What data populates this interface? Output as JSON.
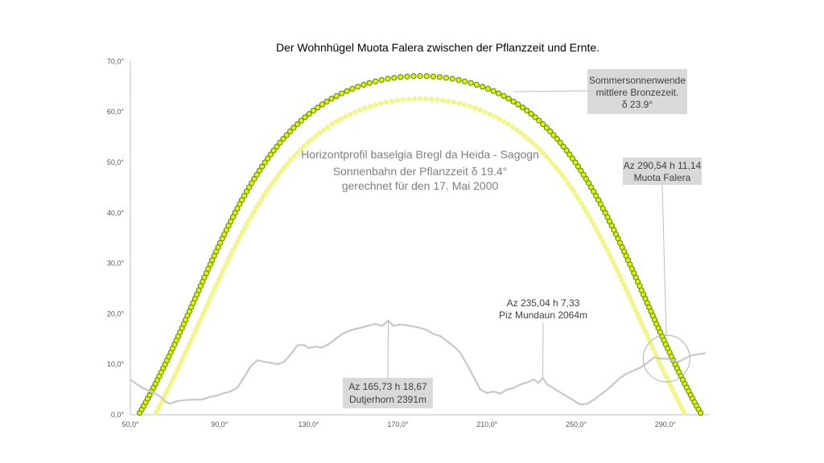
{
  "chart_data": {
    "type": "scatter",
    "title": "Der Wohnhügel Muota Falera zwischen der Pflanzzeit und Ernte.",
    "xlim": [
      50,
      310
    ],
    "ylim": [
      0,
      70
    ],
    "x_ticks": [
      50,
      90,
      130,
      170,
      210,
      250,
      290
    ],
    "x_tick_labels": [
      "50,0°",
      "90,0°",
      "130,0°",
      "170,0°",
      "210,0°",
      "250,0°",
      "290,0°"
    ],
    "y_ticks": [
      0,
      10,
      20,
      30,
      40,
      50,
      60,
      70
    ],
    "y_tick_labels": [
      "0,0°",
      "10,0°",
      "20,0°",
      "30,0°",
      "40,0°",
      "50,0°",
      "60,0°",
      "70,0°"
    ],
    "grid": false,
    "colors": {
      "summer_dots": "#e6f000",
      "summer_dots_outline": "#4d8a00",
      "planting_dots": "#f2f58a",
      "horizon_line": "#c8c8c8",
      "axis": "#bfbfbf",
      "box_fill": "#d9d9d9"
    },
    "horizon_profile": {
      "x": [
        50,
        53,
        56,
        59,
        62,
        64,
        66,
        68,
        70,
        74,
        78,
        82,
        86,
        89,
        92,
        95,
        98,
        101,
        104,
        107,
        110,
        113,
        116,
        119,
        122,
        125,
        128,
        130,
        133,
        136,
        139,
        142,
        145,
        148,
        151,
        154,
        157,
        160,
        163,
        165.73,
        168,
        171,
        174,
        177,
        180,
        183,
        186,
        189,
        192,
        195,
        198,
        201,
        204,
        207,
        210,
        213,
        216,
        219,
        222,
        225,
        228,
        231,
        233,
        235.04,
        237,
        240,
        243,
        246,
        249,
        252,
        255,
        258,
        261,
        264,
        267,
        270,
        273,
        276,
        279,
        282,
        285,
        288,
        290.54,
        293,
        296,
        299,
        302,
        305,
        308
      ],
      "y": [
        7.0,
        6.0,
        5.2,
        4.6,
        4.0,
        3.4,
        2.5,
        2.2,
        2.6,
        2.9,
        3.0,
        3.0,
        3.6,
        3.8,
        4.3,
        4.6,
        5.4,
        7.4,
        9.6,
        10.8,
        10.5,
        10.3,
        10.0,
        10.5,
        12.0,
        13.8,
        13.8,
        13.2,
        13.5,
        13.3,
        14.0,
        15.0,
        16.0,
        16.6,
        17.0,
        17.3,
        17.7,
        18.0,
        17.6,
        18.67,
        17.6,
        17.9,
        17.7,
        17.5,
        17.2,
        16.8,
        16.0,
        15.6,
        14.6,
        13.6,
        12.3,
        10.0,
        7.5,
        5.0,
        4.3,
        4.6,
        4.2,
        5.0,
        5.3,
        6.0,
        6.4,
        7.0,
        6.3,
        7.33,
        6.0,
        5.2,
        4.4,
        3.6,
        2.8,
        2.0,
        2.2,
        3.0,
        4.0,
        5.0,
        6.2,
        7.4,
        8.2,
        8.8,
        9.4,
        10.3,
        11.4,
        11.1,
        11.14,
        10.8,
        10.5,
        11.2,
        11.8,
        12.0,
        12.2
      ]
    },
    "series": [
      {
        "name": "Sommersonnenwende mittlere Bronzezeit",
        "declination": 23.9,
        "x": [
          46.0,
          49.4,
          52.6,
          55.7,
          58.5,
          61.2,
          63.8,
          66.2,
          68.6,
          70.8,
          73.0,
          75.2,
          77.3,
          79.3,
          81.3,
          83.3,
          85.3,
          87.3,
          89.2,
          91.2,
          93.1,
          95.1,
          97.1,
          99.1,
          101.1,
          103.1,
          105.2,
          107.3,
          109.4,
          111.6,
          113.8,
          116.1,
          118.4,
          120.8,
          123.2,
          125.7,
          128.2,
          130.8,
          133.5,
          136.2,
          139.0,
          141.9,
          144.9,
          147.9,
          151.0,
          154.1,
          157.3,
          160.6,
          163.9,
          167.2,
          170.6,
          174.0,
          177.4,
          180.0,
          182.6,
          186.0,
          189.4,
          192.8,
          196.1,
          199.4,
          202.7,
          205.9,
          209.0,
          212.1,
          215.1,
          218.1,
          221.0,
          223.8,
          226.5,
          229.2,
          231.8,
          234.3,
          236.8,
          239.2,
          241.6,
          243.9,
          246.2,
          248.4,
          250.6,
          252.7,
          254.8,
          256.9,
          258.9,
          260.9,
          262.9,
          264.9,
          266.9,
          268.8,
          270.8,
          272.7,
          274.7,
          276.7,
          278.7,
          280.7,
          282.8,
          284.8,
          286.9,
          289.1,
          291.4,
          293.8,
          296.2,
          298.8,
          301.5,
          304.3,
          307.4,
          310.6,
          314.0
        ],
        "y": [
          0.0,
          1.1,
          2.2,
          3.4,
          4.5,
          5.7,
          6.9,
          8.1,
          9.3,
          10.5,
          11.7,
          12.9,
          14.1,
          15.3,
          16.5,
          17.7,
          18.9,
          20.1,
          21.3,
          22.5,
          23.7,
          24.9,
          26.1,
          27.3,
          28.5,
          29.7,
          30.9,
          32.1,
          33.3,
          34.5,
          35.7,
          36.8,
          38.0,
          39.1,
          40.3,
          41.4,
          42.5,
          43.6,
          44.7,
          45.8,
          46.9,
          48.0,
          49.0,
          50.0,
          51.0,
          52.0,
          52.9,
          53.8,
          54.7,
          55.5,
          56.3,
          57.0,
          57.7,
          58.3,
          58.9,
          59.4,
          59.9,
          60.3,
          60.7,
          61.0,
          61.3,
          61.5,
          61.7,
          61.8,
          61.9,
          61.9,
          62.8,
          63.6,
          64.4,
          65.1,
          65.7,
          66.2,
          66.6,
          66.9,
          67.1,
          67.2,
          67.2,
          67.1,
          66.9,
          66.6,
          66.2,
          65.7,
          65.1,
          64.4,
          63.6,
          62.7,
          61.7,
          60.6,
          59.4,
          58.1,
          56.7,
          55.2,
          53.6,
          51.9,
          50.1,
          48.2,
          46.2,
          44.1,
          41.9,
          39.6,
          37.2,
          34.7,
          32.1,
          29.4,
          26.6,
          23.7,
          20.7
        ],
        "note": "Sommersonnenwende mittlere Bronzezeit"
      },
      {
        "name": "Sonnenbahn der Pflanzzeit",
        "declination": 19.4
      }
    ],
    "annotations": {
      "center_text": [
        "Horizontprofil baselgia Bregl da Heida - Sagogn",
        "Sonnenbahn der Pflanzzeit δ 19.4°",
        "gerechnet für den 17. Mai 2000"
      ],
      "summer_box": [
        "Sommersonnenwende",
        "mittlere Bronzezeit.",
        "δ 23.9°"
      ],
      "falera_box": [
        "Az 290,54 h 11,14",
        "Muota Falera"
      ],
      "mundaun_label": [
        "Az 235,04  h 7,33",
        "Piz Mundaun 2064m"
      ],
      "dutjerhorn_box": [
        "Az 165,73 h 18,67",
        "Dutjerhorn 2391m"
      ],
      "falera_point": [
        290.54,
        11.14
      ],
      "mundaun_point": [
        235.04,
        7.33
      ],
      "dutjerhorn_point": [
        165.73,
        18.67
      ]
    }
  }
}
